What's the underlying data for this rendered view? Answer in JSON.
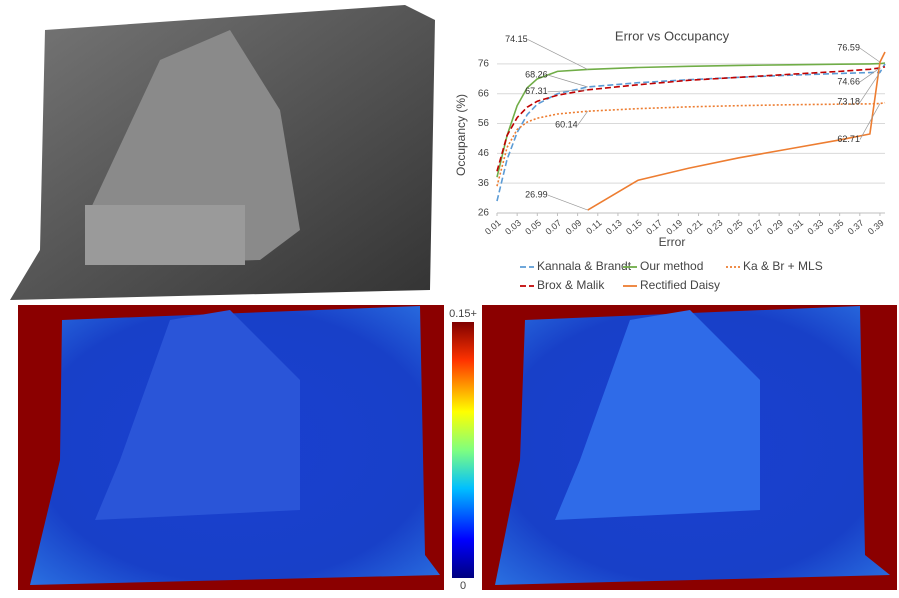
{
  "chart_data": {
    "type": "line",
    "title": "Error vs Occupancy",
    "x_label": "Error",
    "y_label": "Occupancy (%)",
    "x": [
      0.01,
      0.02,
      0.03,
      0.04,
      0.05,
      0.07,
      0.1,
      0.15,
      0.2,
      0.25,
      0.3,
      0.35,
      0.38,
      0.39,
      0.395
    ],
    "xlim": [
      0.01,
      0.395
    ],
    "ylim": [
      26,
      81
    ],
    "xticks": [
      0.01,
      0.03,
      0.05,
      0.07,
      0.09,
      0.11,
      0.13,
      0.15,
      0.17,
      0.19,
      0.21,
      0.23,
      0.25,
      0.27,
      0.29,
      0.31,
      0.33,
      0.35,
      0.37,
      0.39
    ],
    "yticks": [
      26,
      36,
      46,
      56,
      66,
      76
    ],
    "grid": true,
    "series": [
      {
        "name": "Kannala & Brandt",
        "color": "#5b9bd5",
        "dash": "dashed",
        "values": [
          30,
          44,
          53,
          59,
          62.5,
          66,
          68.26,
          69.7,
          70.7,
          71.5,
          72.2,
          72.8,
          73.1,
          73.18,
          76
        ]
      },
      {
        "name": "Our method",
        "color": "#70ad47",
        "dash": "solid",
        "values": [
          38,
          52,
          62,
          68,
          71,
          73.5,
          74.15,
          74.8,
          75.2,
          75.5,
          75.7,
          75.9,
          76,
          76.1,
          76.3
        ]
      },
      {
        "name": "Ka & Br + MLS",
        "color": "#ed7d31",
        "dash": "dotted",
        "values": [
          35,
          48,
          54,
          56.5,
          57.8,
          59.2,
          60.14,
          61,
          61.6,
          62,
          62.3,
          62.5,
          62.6,
          62.71,
          63
        ]
      },
      {
        "name": "Brox & Malik",
        "color": "#c00000",
        "dash": "dashed",
        "values": [
          40,
          52,
          58,
          61.5,
          63.5,
          65.5,
          67.31,
          69,
          70.5,
          71.5,
          72.5,
          73.5,
          74.2,
          74.66,
          75
        ]
      },
      {
        "name": "Rectified Daisy",
        "color": "#ed7d31",
        "dash": "solid",
        "values": [
          null,
          null,
          null,
          null,
          null,
          null,
          26.99,
          37,
          41,
          44.5,
          47.5,
          50.5,
          52.5,
          76.59,
          80
        ]
      }
    ],
    "annotations": [
      {
        "value": 74.15,
        "x": 0.1
      },
      {
        "value": 68.26,
        "x": 0.1
      },
      {
        "value": 67.31,
        "x": 0.1
      },
      {
        "value": 60.14,
        "x": 0.1
      },
      {
        "value": 26.99,
        "x": 0.1
      },
      {
        "value": 76.59,
        "x": 0.39
      },
      {
        "value": 74.66,
        "x": 0.39
      },
      {
        "value": 73.18,
        "x": 0.39
      },
      {
        "value": 62.71,
        "x": 0.39
      }
    ]
  },
  "colorbar": {
    "max_label": "0.15+",
    "min_label": "0"
  }
}
